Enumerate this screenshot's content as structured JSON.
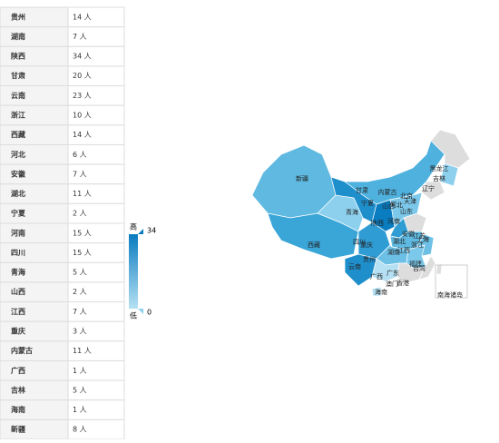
{
  "table": {
    "rows": [
      [
        "贵州",
        "14 人"
      ],
      [
        "湖南",
        "7 人"
      ],
      [
        "陕西",
        "34 人"
      ],
      [
        "甘肃",
        "20 人"
      ],
      [
        "云南",
        "23 人"
      ],
      [
        "浙江",
        "10 人"
      ],
      [
        "西藏",
        "14 人"
      ],
      [
        "河北",
        "6 人"
      ],
      [
        "安徽",
        "7 人"
      ],
      [
        "湖北",
        "11 人"
      ],
      [
        "宁夏",
        "2 人"
      ],
      [
        "河南",
        "15 人"
      ],
      [
        "四川",
        "15 人"
      ],
      [
        "青海",
        "5 人"
      ],
      [
        "山西",
        "2 人"
      ],
      [
        "江西",
        "7 人"
      ],
      [
        "重庆",
        "3 人"
      ],
      [
        "内蒙古",
        "11 人"
      ],
      [
        "广西",
        "1 人"
      ],
      [
        "吉林",
        "5 人"
      ],
      [
        "海南",
        "1 人"
      ],
      [
        "新疆",
        "8 人"
      ]
    ]
  },
  "legend": {
    "high": "高",
    "max": "34",
    "low": "低",
    "min": "0"
  },
  "map": {
    "labels": [
      "新疆",
      "西藏",
      "青海",
      "甘肃",
      "宁夏",
      "内蒙古",
      "黑龙江",
      "吉林",
      "辽宁",
      "北京",
      "天津",
      "河北",
      "山西",
      "山东",
      "陕西",
      "河南",
      "四川",
      "重庆",
      "湖北",
      "安徽",
      "江苏",
      "上海",
      "浙江",
      "湖南",
      "江西",
      "贵州",
      "云南",
      "广西",
      "广东",
      "福建",
      "台湾",
      "澳门",
      "香港",
      "海南",
      "南海诸岛"
    ]
  }
}
